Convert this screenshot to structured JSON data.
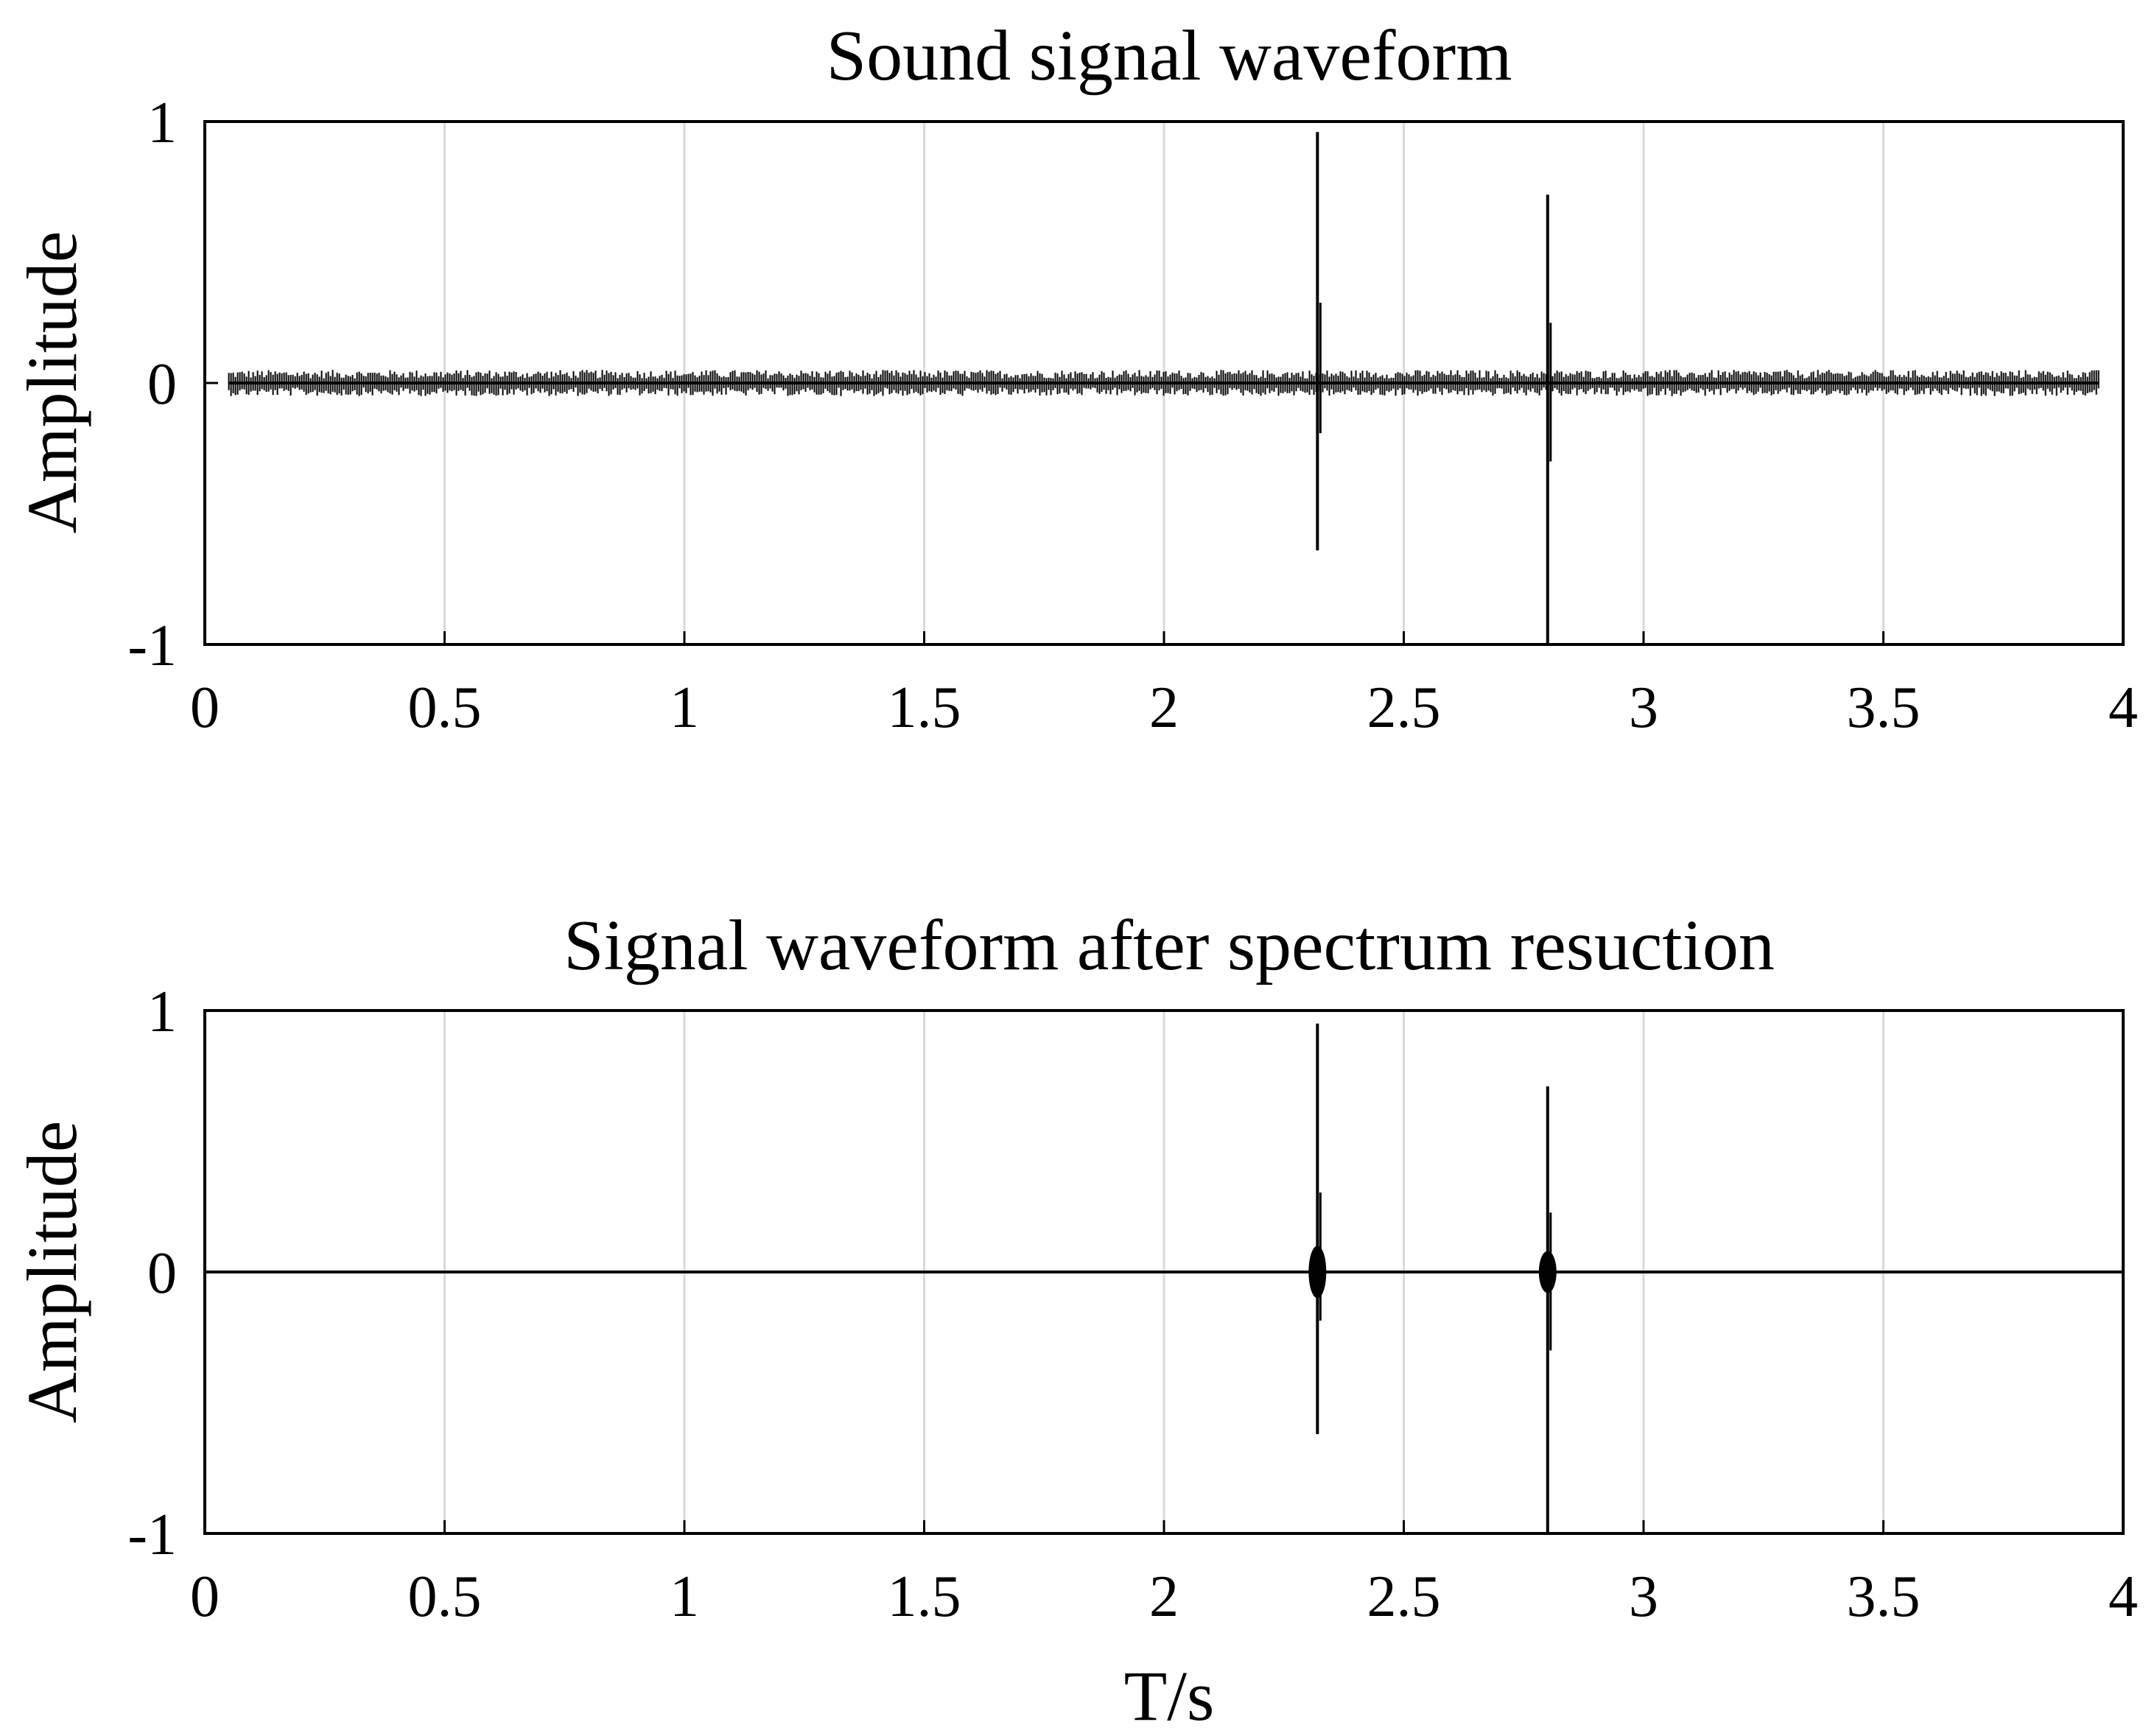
{
  "chart_data": [
    {
      "type": "line",
      "title": "Sound signal waveform",
      "xlabel": "",
      "ylabel": "Amplitude",
      "xlim": [
        0,
        4
      ],
      "ylim": [
        -1,
        1
      ],
      "x_ticks": [
        "0",
        "0.5",
        "1",
        "1.5",
        "2",
        "2.5",
        "3",
        "3.5",
        "4"
      ],
      "y_ticks": [
        "-1",
        "0",
        "1"
      ],
      "grid": "vertical",
      "series": [
        {
          "noise_floor": 0.05,
          "signal_start": 0.05,
          "signal_end": 3.95,
          "spikes": [
            {
              "t": 2.32,
              "max": 0.96,
              "min": -0.64
            },
            {
              "t": 2.8,
              "max": 0.72,
              "min": -1.0
            }
          ]
        }
      ]
    },
    {
      "type": "line",
      "title": "Signal waveform after spectrum resuction",
      "xlabel": "T/s",
      "ylabel": "Amplitude",
      "xlim": [
        0,
        4
      ],
      "ylim": [
        -1,
        1
      ],
      "x_ticks": [
        "0",
        "0.5",
        "1",
        "1.5",
        "2",
        "2.5",
        "3",
        "3.5",
        "4"
      ],
      "y_ticks": [
        "-1",
        "0",
        "1"
      ],
      "grid": "vertical",
      "series": [
        {
          "noise_floor": 0.005,
          "signal_start": 0.0,
          "signal_end": 4.0,
          "spikes": [
            {
              "t": 2.32,
              "max": 0.95,
              "min": -0.62,
              "burst": 0.05
            },
            {
              "t": 2.8,
              "max": 0.71,
              "min": -1.0,
              "burst": 0.04
            }
          ]
        }
      ]
    }
  ],
  "colors": {
    "line": "#000000",
    "grid": "#d9d9d9",
    "axes": "#000000",
    "background": "#ffffff"
  }
}
